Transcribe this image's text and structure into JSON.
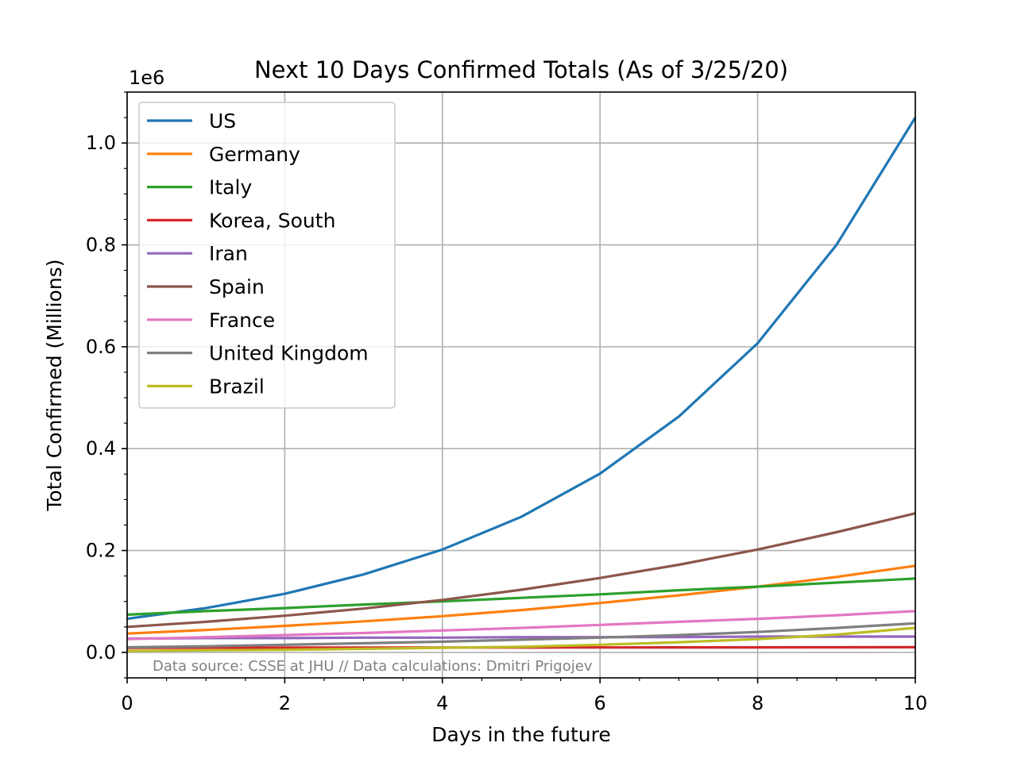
{
  "chart_data": {
    "type": "line",
    "title": "Next 10 Days Confirmed Totals (As of 3/25/20)",
    "xlabel": "Days in the future",
    "ylabel": "Total Confirmed (Millions)",
    "y_offset_label": "1e6",
    "xlim": [
      0,
      10
    ],
    "ylim": [
      -0.05,
      1.1
    ],
    "x_ticks": [
      0,
      2,
      4,
      6,
      8,
      10
    ],
    "x_tick_labels": [
      "0",
      "2",
      "4",
      "6",
      "8",
      "10"
    ],
    "y_ticks": [
      0,
      0.2,
      0.4,
      0.6,
      0.8,
      1.0
    ],
    "y_tick_labels": [
      "0.0",
      "0.2",
      "0.4",
      "0.6",
      "0.8",
      "1.0"
    ],
    "grid": true,
    "legend_position": "top-left",
    "annotation": "Data source: CSSE at JHU // Data calculations: Dmitri Prigojev",
    "x": [
      0,
      1,
      2,
      3,
      4,
      5,
      6,
      7,
      8,
      9,
      10
    ],
    "series": [
      {
        "name": "US",
        "color": "#1f77b4",
        "values": [
          0.066,
          0.087,
          0.115,
          0.153,
          0.202,
          0.266,
          0.351,
          0.463,
          0.607,
          0.8,
          1.05
        ]
      },
      {
        "name": "Germany",
        "color": "#ff7f0e",
        "values": [
          0.037,
          0.044,
          0.052,
          0.061,
          0.071,
          0.083,
          0.097,
          0.112,
          0.129,
          0.148,
          0.17
        ]
      },
      {
        "name": "Italy",
        "color": "#2ca02c",
        "values": [
          0.074,
          0.081,
          0.087,
          0.094,
          0.1,
          0.107,
          0.114,
          0.122,
          0.129,
          0.137,
          0.145
        ]
      },
      {
        "name": "Korea, South",
        "color": "#d62728",
        "values": [
          0.0091,
          0.0092,
          0.0093,
          0.0094,
          0.0095,
          0.0096,
          0.0097,
          0.0098,
          0.0099,
          0.01,
          0.0101
        ]
      },
      {
        "name": "Iran",
        "color": "#9467bd",
        "values": [
          0.027,
          0.028,
          0.028,
          0.029,
          0.029,
          0.03,
          0.03,
          0.03,
          0.031,
          0.031,
          0.031
        ]
      },
      {
        "name": "Spain",
        "color": "#8c564b",
        "values": [
          0.05,
          0.06,
          0.072,
          0.086,
          0.103,
          0.123,
          0.146,
          0.172,
          0.202,
          0.236,
          0.273
        ]
      },
      {
        "name": "France",
        "color": "#e377c2",
        "values": [
          0.026,
          0.03,
          0.034,
          0.038,
          0.043,
          0.048,
          0.054,
          0.06,
          0.066,
          0.073,
          0.081
        ]
      },
      {
        "name": "United Kingdom",
        "color": "#7f7f7f",
        "values": [
          0.01,
          0.012,
          0.015,
          0.018,
          0.021,
          0.025,
          0.029,
          0.034,
          0.04,
          0.048,
          0.057
        ]
      },
      {
        "name": "Brazil",
        "color": "#bcbd22",
        "values": [
          0.003,
          0.004,
          0.005,
          0.007,
          0.009,
          0.011,
          0.015,
          0.02,
          0.026,
          0.035,
          0.048
        ]
      }
    ]
  }
}
